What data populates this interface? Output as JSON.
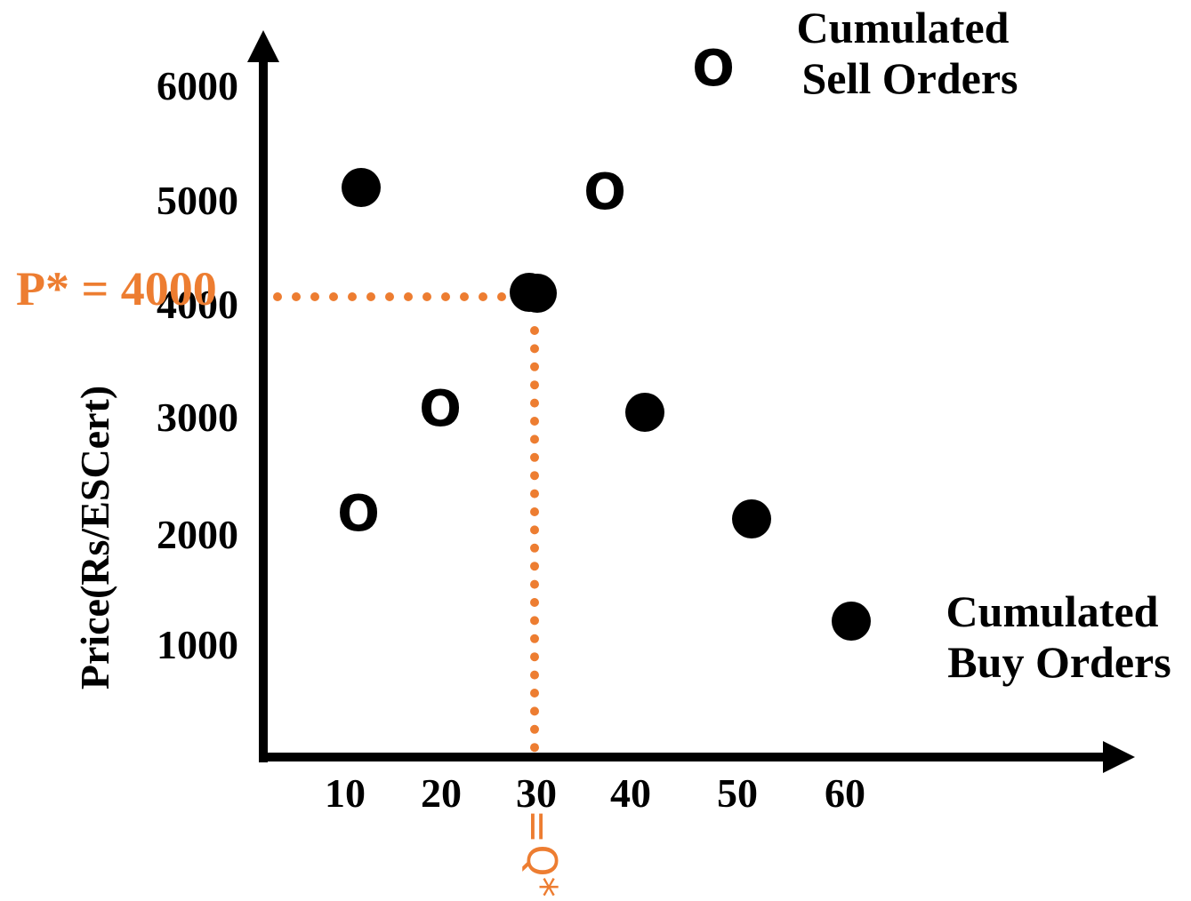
{
  "colors": {
    "axis": "#000000",
    "equilibrium": "#ED7D31"
  },
  "chart_data": {
    "type": "scatter",
    "ylabel": "Price(Rs/ESCert)",
    "xlabel": "",
    "x_ticks": [
      "10",
      "20",
      "30",
      "40",
      "50",
      "60"
    ],
    "y_ticks": [
      "1000",
      "2000",
      "3000",
      "4000",
      "5000",
      "6000"
    ],
    "xlim": [
      0,
      70
    ],
    "ylim": [
      0,
      6200
    ],
    "series": [
      {
        "name": "Cumulated Buy Orders",
        "marker": "filled-dot",
        "points": [
          {
            "x": 10,
            "y": 5000
          },
          {
            "x": 30,
            "y": 4000
          },
          {
            "x": 40,
            "y": 2900
          },
          {
            "x": 50,
            "y": 2000
          },
          {
            "x": 60,
            "y": 1100
          }
        ]
      },
      {
        "name": "Cumulated Sell Orders",
        "marker": "O",
        "points": [
          {
            "x": 10,
            "y": 2000
          },
          {
            "x": 20,
            "y": 3000
          },
          {
            "x": 30,
            "y": 4000
          },
          {
            "x": 40,
            "y": 5000
          },
          {
            "x": 50,
            "y": 6000
          }
        ]
      }
    ],
    "legend": [
      {
        "line1": "Cumulated",
        "line2": "Sell Orders",
        "placement": "top-right"
      },
      {
        "line1": "Cumulated",
        "line2": "Buy Orders",
        "placement": "bottom-right"
      }
    ],
    "annotations": {
      "p_label": "P* = ",
      "p_value": 4000,
      "q_label": "Q*",
      "q_eq": "=",
      "q_value": 30
    }
  }
}
